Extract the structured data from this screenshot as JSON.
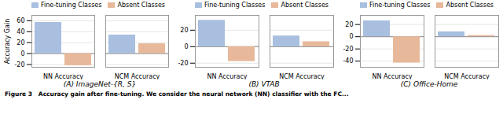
{
  "chart_data": [
    {
      "type": "bar",
      "title": "(A) ImageNet-{R, S}",
      "ylabel": "Accuracy Gain",
      "categories": [
        "NN Accuracy",
        "NCM Accuracy"
      ],
      "series": [
        {
          "name": "Fine-tuning Classes",
          "color": "#a8bfe0",
          "values": [
            57,
            34
          ]
        },
        {
          "name": "Absent Classes",
          "color": "#e8b89a",
          "values": [
            -22,
            18
          ]
        }
      ],
      "ylim": [
        -25,
        70
      ],
      "yticks": [
        -20,
        0,
        20,
        40,
        60
      ],
      "grid": true,
      "legend": "top"
    },
    {
      "type": "bar",
      "title": "(B) VTAB",
      "categories": [
        "NN Accuracy",
        "NCM Accuracy"
      ],
      "series": [
        {
          "name": "Fine-tuning Classes",
          "color": "#a8bfe0",
          "values": [
            32,
            13
          ]
        },
        {
          "name": "Absent Classes",
          "color": "#e8b89a",
          "values": [
            -18,
            6
          ]
        }
      ],
      "ylim": [
        -25,
        38
      ],
      "yticks": [
        -20,
        0,
        20
      ],
      "grid": true,
      "legend": "top"
    },
    {
      "type": "bar",
      "title": "(C) Office-Home",
      "categories": [
        "NN Accuracy",
        "NCM Accuracy"
      ],
      "series": [
        {
          "name": "Fine-tuning Classes",
          "color": "#a8bfe0",
          "values": [
            26,
            8
          ]
        },
        {
          "name": "Absent Classes",
          "color": "#e8b89a",
          "values": [
            -43,
            2
          ]
        }
      ],
      "ylim": [
        -50,
        35
      ],
      "yticks": [
        -40,
        -20,
        0,
        20
      ],
      "grid": true,
      "legend": "top"
    }
  ],
  "caption": "Figure 3   Accuracy gain after fine-tuning. We consider the neural network (NN) classifier with the FC..."
}
